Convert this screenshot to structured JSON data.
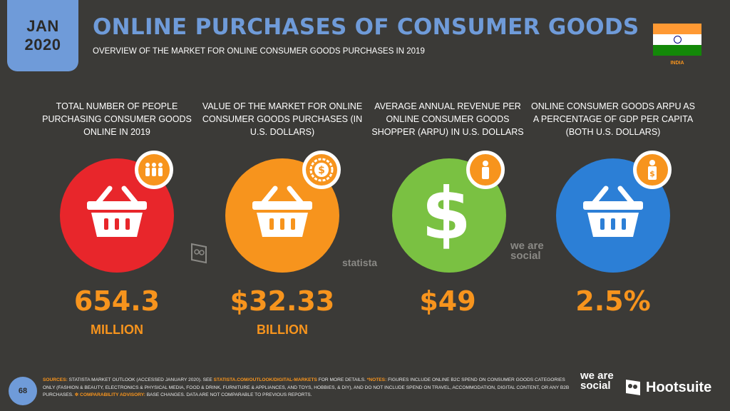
{
  "header": {
    "month": "JAN",
    "year": "2020",
    "title": "ONLINE PURCHASES OF CONSUMER GOODS",
    "subtitle": "OVERVIEW OF THE MARKET FOR ONLINE CONSUMER GOODS PURCHASES IN 2019",
    "country": "INDIA"
  },
  "colors": {
    "background": "#3b3a37",
    "accent_blue": "#6f9bd9",
    "accent_orange": "#f7941d",
    "red": "#e8262b",
    "orange": "#f7941d",
    "green": "#7ac142",
    "blue": "#2c7fd6"
  },
  "stats": [
    {
      "label": "TOTAL NUMBER OF PEOPLE PURCHASING CONSUMER GOODS ONLINE IN 2019",
      "value": "654.3",
      "unit": "MILLION",
      "color": "#e8262b",
      "icon": "basket-icon",
      "badge_icon": "people-icon"
    },
    {
      "label": "VALUE OF THE MARKET FOR ONLINE CONSUMER GOODS PURCHASES (IN U.S. DOLLARS)",
      "value": "$32.33",
      "unit": "BILLION",
      "color": "#f7941d",
      "icon": "basket-icon",
      "badge_icon": "dollar-seal-icon"
    },
    {
      "label": "AVERAGE ANNUAL REVENUE PER ONLINE CONSUMER GOODS SHOPPER (ARPU) IN U.S. DOLLARS",
      "value": "$49",
      "unit": "",
      "color": "#7ac142",
      "icon": "dollar-icon",
      "badge_icon": "person-icon"
    },
    {
      "label": "ONLINE CONSUMER GOODS ARPU AS A PERCENTAGE OF GDP PER CAPITA (BOTH U.S. DOLLARS)",
      "value": "2.5%",
      "unit": "",
      "color": "#2c7fd6",
      "icon": "basket-icon",
      "badge_icon": "person-dollar-icon"
    }
  ],
  "watermarks": {
    "statista": "statista",
    "we_are_social": "we are social"
  },
  "footer": {
    "page_number": "68",
    "sources_label": "SOURCES:",
    "sources_text_1": " STATISTA MARKET OUTLOOK (ACCESSED JANUARY 2020). SEE ",
    "sources_url": "STATISTA.COM/OUTLOOK/DIGITAL-MARKETS",
    "sources_text_2": " FOR MORE DETAILS. ",
    "notes_label": "*NOTES:",
    "notes_text": " FIGURES INCLUDE ONLINE B2C SPEND ON CONSUMER GOODS CATEGORIES ONLY (FASHION & BEAUTY, ELECTRONICS & PHYSICAL MEDIA, FOOD & DRINK, FURNITURE & APPLIANCES, AND TOYS, HOBBIES, & DIY), AND DO NOT INCLUDE SPEND ON TRAVEL, ACCOMMODATION, DIGITAL CONTENT, OR ANY B2B PURCHASES. ",
    "advisory_label": "✲ COMPARABILITY ADVISORY:",
    "advisory_text": " BASE CHANGES. DATA ARE NOT COMPARABLE TO PREVIOUS REPORTS.",
    "brand_1": "we are social",
    "brand_2": "Hootsuite"
  }
}
